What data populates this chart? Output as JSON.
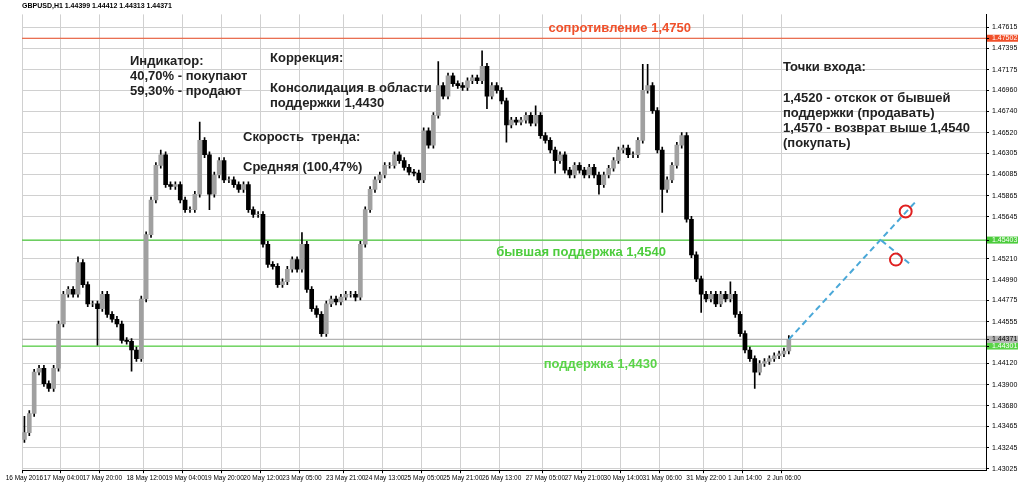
{
  "chart_data": {
    "type": "candlestick",
    "title": "GBPUSD,H1 1.44399 1.44412 1.44313 1.44371",
    "color": "#000000",
    "grid": true,
    "colors": [
      "#a0a0a0",
      "#a0a0a0",
      "#a0a0a0",
      "#a0a0a0",
      "#000000",
      "#000000",
      "#a0a0a0",
      "#a0a0a0",
      "#a0a0a0",
      "#a0a0a0",
      "#000000",
      "#a0a0a0",
      "#000000",
      "#000000",
      "#a0a0a0",
      "#000000",
      "#a0a0a0",
      "#000000",
      "#000000",
      "#000000",
      "#000000",
      "#000000",
      "#000000",
      "#000000",
      "#a0a0a0",
      "#a0a0a0",
      "#a0a0a0",
      "#a0a0a0",
      "#a0a0a0",
      "#000000",
      "#000000",
      "#a0a0a0",
      "#000000",
      "#000000",
      "#a0a0a0",
      "#a0a0a0",
      "#a0a0a0",
      "#000000",
      "#000000",
      "#a0a0a0",
      "#a0a0a0",
      "#000000",
      "#a0a0a0",
      "#000000",
      "#000000",
      "#a0a0a0",
      "#000000",
      "#000000",
      "#a0a0a0",
      "#000000",
      "#000000",
      "#000000",
      "#000000",
      "#a0a0a0",
      "#a0a0a0",
      "#a0a0a0",
      "#000000",
      "#a0a0a0",
      "#000000",
      "#000000",
      "#000000",
      "#000000",
      "#a0a0a0",
      "#a0a0a0",
      "#000000",
      "#a0a0a0",
      "#a0a0a0",
      "#a0a0a0",
      "#000000",
      "#a0a0a0",
      "#a0a0a0",
      "#a0a0a0",
      "#a0a0a0",
      "#a0a0a0",
      "#a0a0a0",
      "#a0a0a0",
      "#a0a0a0",
      "#000000",
      "#000000",
      "#000000",
      "#000000",
      "#000000",
      "#a0a0a0",
      "#000000",
      "#a0a0a0",
      "#a0a0a0",
      "#000000",
      "#a0a0a0",
      "#000000",
      "#000000",
      "#000000",
      "#a0a0a0",
      "#a0a0a0",
      "#000000",
      "#a0a0a0",
      "#000000",
      "#a0a0a0",
      "#000000",
      "#000000",
      "#000000",
      "#a0a0a0",
      "#000000",
      "#a0a0a0",
      "#a0a0a0",
      "#000000",
      "#a0a0a0",
      "#000000",
      "#000000",
      "#000000",
      "#000000",
      "#a0a0a0",
      "#000000",
      "#000000",
      "#a0a0a0",
      "#000000",
      "#000000",
      "#a0a0a0",
      "#000000",
      "#000000",
      "#a0a0a0",
      "#a0a0a0",
      "#a0a0a0",
      "#a0a0a0",
      "#a0a0a0",
      "#000000",
      "#a0a0a0",
      "#a0a0a0",
      "#a0a0a0",
      "#a0a0a0",
      "#000000",
      "#000000",
      "#000000",
      "#a0a0a0",
      "#a0a0a0",
      "#a0a0a0",
      "#a0a0a0",
      "#000000",
      "#000000",
      "#000000",
      "#000000",
      "#000000",
      "#a0a0a0",
      "#000000",
      "#a0a0a0",
      "#000000",
      "#a0a0a0",
      "#000000",
      "#000000",
      "#000000",
      "#000000",
      "#000000",
      "#a0a0a0",
      "#a0a0a0",
      "#a0a0a0",
      "#a0a0a0",
      "#a0a0a0",
      "#a0a0a0",
      "#a0a0a0",
      null,
      null,
      null,
      null,
      null,
      null,
      null,
      null,
      null,
      null,
      null,
      null,
      null,
      null,
      null,
      null,
      null,
      null,
      null,
      null,
      null,
      null,
      null,
      null,
      null,
      null,
      null,
      null,
      null,
      null,
      null,
      null,
      null,
      null,
      null,
      null,
      null,
      null,
      null,
      null
    ],
    "legend": false,
    "categories": [
      "16 May 2016",
      null,
      null,
      null,
      null,
      null,
      null,
      null,
      "17 May 04:00",
      null,
      null,
      null,
      null,
      null,
      null,
      null,
      "17 May 20:00",
      null,
      null,
      null,
      null,
      null,
      null,
      null,
      null,
      "18 May 12:00",
      null,
      null,
      null,
      null,
      null,
      null,
      null,
      "19 May 04:00",
      null,
      null,
      null,
      null,
      null,
      null,
      null,
      "19 May 20:00",
      null,
      null,
      null,
      null,
      null,
      null,
      null,
      "20 May 12:00",
      null,
      null,
      null,
      null,
      null,
      null,
      null,
      "23 May 05:00",
      null,
      null,
      null,
      null,
      null,
      null,
      null,
      null,
      "23 May 21:00",
      null,
      null,
      null,
      null,
      null,
      null,
      null,
      "24 May 13:00",
      null,
      null,
      null,
      null,
      null,
      null,
      null,
      "25 May 05:00",
      null,
      null,
      null,
      null,
      null,
      null,
      null,
      "25 May 21:00",
      null,
      null,
      null,
      null,
      null,
      null,
      null,
      "26 May 13:00",
      null,
      null,
      null,
      null,
      null,
      null,
      null,
      null,
      "27 May 05:00",
      null,
      null,
      null,
      null,
      null,
      null,
      null,
      "27 May 21:00",
      null,
      null,
      null,
      null,
      null,
      null,
      null,
      "30 May 14:00",
      null,
      null,
      null,
      null,
      null,
      null,
      null,
      "31 May 06:00",
      null,
      null,
      null,
      null,
      null,
      null,
      null,
      null,
      "31 May 22:00",
      null,
      null,
      null,
      null,
      null,
      null,
      null,
      "1 Jun 14:00",
      null,
      null,
      null,
      null,
      null,
      null,
      null,
      "2 Jun 06:00",
      null,
      null,
      null,
      null,
      null,
      null,
      null,
      null,
      null,
      null,
      null,
      null,
      null,
      null,
      null,
      null,
      null,
      null,
      null,
      null,
      null,
      null,
      null,
      null,
      null,
      null,
      null,
      null,
      null,
      null,
      null,
      null,
      null,
      null,
      null,
      null,
      null,
      null,
      null,
      null,
      null
    ],
    "ohlc": [
      [
        1.4333,
        1.4357,
        1.433,
        1.434
      ],
      [
        1.434,
        1.4363,
        1.4337,
        1.436
      ],
      [
        1.436,
        1.4406,
        1.4357,
        1.4403
      ],
      [
        1.4403,
        1.441,
        1.44,
        1.4407
      ],
      [
        1.4407,
        1.441,
        1.4388,
        1.4391
      ],
      [
        1.4391,
        1.4394,
        1.4383,
        1.4386
      ],
      [
        1.4386,
        1.441,
        1.4383,
        1.4407
      ],
      [
        1.4407,
        1.4456,
        1.4404,
        1.4453
      ],
      [
        1.4453,
        1.4487,
        1.445,
        1.4484
      ],
      [
        1.4484,
        1.4492,
        1.4481,
        1.4489
      ],
      [
        1.4489,
        1.4492,
        1.4481,
        1.4484
      ],
      [
        1.4484,
        1.4523,
        1.4481,
        1.4517
      ],
      [
        1.4517,
        1.452,
        1.4491,
        1.4494
      ],
      [
        1.4494,
        1.4497,
        1.4471,
        1.4474
      ],
      [
        1.4474,
        1.4477,
        1.4471,
        1.4474
      ],
      [
        1.4474,
        1.4477,
        1.4431,
        1.4469
      ],
      [
        1.4469,
        1.4487,
        1.4466,
        1.4484
      ],
      [
        1.4484,
        1.4487,
        1.446,
        1.4463
      ],
      [
        1.4463,
        1.4466,
        1.4455,
        1.4458
      ],
      [
        1.4458,
        1.4461,
        1.445,
        1.4453
      ],
      [
        1.4453,
        1.4456,
        1.4433,
        1.4436
      ],
      [
        1.4436,
        1.4439,
        1.4432,
        1.4435
      ],
      [
        1.4435,
        1.4438,
        1.4404,
        1.4426
      ],
      [
        1.4426,
        1.4429,
        1.4414,
        1.4417
      ],
      [
        1.4417,
        1.4482,
        1.4414,
        1.4479
      ],
      [
        1.4479,
        1.4549,
        1.4476,
        1.4546
      ],
      [
        1.4546,
        1.4585,
        1.4543,
        1.4582
      ],
      [
        1.4582,
        1.4621,
        1.4579,
        1.4618
      ],
      [
        1.4618,
        1.4634,
        1.4615,
        1.4629
      ],
      [
        1.4629,
        1.4632,
        1.4595,
        1.4598
      ],
      [
        1.4598,
        1.4601,
        1.4593,
        1.4596
      ],
      [
        1.4596,
        1.4601,
        1.4593,
        1.4598
      ],
      [
        1.4598,
        1.4601,
        1.4579,
        1.4582
      ],
      [
        1.4582,
        1.4585,
        1.4569,
        1.4572
      ],
      [
        1.4572,
        1.4575,
        1.4569,
        1.4572
      ],
      [
        1.4572,
        1.4591,
        1.4569,
        1.4588
      ],
      [
        1.4588,
        1.4663,
        1.4585,
        1.4644
      ],
      [
        1.4644,
        1.4647,
        1.4626,
        1.4629
      ],
      [
        1.4629,
        1.4632,
        1.4572,
        1.4588
      ],
      [
        1.4588,
        1.4611,
        1.4585,
        1.4608
      ],
      [
        1.4608,
        1.4626,
        1.4605,
        1.4623
      ],
      [
        1.4623,
        1.4626,
        1.46,
        1.4603
      ],
      [
        1.4603,
        1.4606,
        1.46,
        1.4603
      ],
      [
        1.4603,
        1.4606,
        1.4595,
        1.4598
      ],
      [
        1.4598,
        1.4601,
        1.459,
        1.4593
      ],
      [
        1.4593,
        1.4601,
        1.459,
        1.4598
      ],
      [
        1.4598,
        1.4601,
        1.4569,
        1.4572
      ],
      [
        1.4572,
        1.4575,
        1.4564,
        1.4567
      ],
      [
        1.4567,
        1.457,
        1.4564,
        1.4567
      ],
      [
        1.4567,
        1.457,
        1.4533,
        1.4536
      ],
      [
        1.4536,
        1.4539,
        1.4512,
        1.4515
      ],
      [
        1.4515,
        1.4518,
        1.451,
        1.4513
      ],
      [
        1.4513,
        1.4516,
        1.4491,
        1.4494
      ],
      [
        1.4494,
        1.45,
        1.4491,
        1.4497
      ],
      [
        1.4497,
        1.4513,
        1.4494,
        1.451
      ],
      [
        1.451,
        1.4523,
        1.4507,
        1.452
      ],
      [
        1.452,
        1.4523,
        1.4507,
        1.451
      ],
      [
        1.451,
        1.4548,
        1.4507,
        1.4536
      ],
      [
        1.4536,
        1.4539,
        1.4486,
        1.4489
      ],
      [
        1.4489,
        1.4492,
        1.4466,
        1.4469
      ],
      [
        1.4469,
        1.4472,
        1.446,
        1.4463
      ],
      [
        1.4463,
        1.4466,
        1.444,
        1.4443
      ],
      [
        1.4443,
        1.4477,
        1.444,
        1.4474
      ],
      [
        1.4474,
        1.4482,
        1.4471,
        1.4479
      ],
      [
        1.4479,
        1.4482,
        1.4473,
        1.4476
      ],
      [
        1.4476,
        1.4484,
        1.4473,
        1.4481
      ],
      [
        1.4481,
        1.4487,
        1.4478,
        1.4484
      ],
      [
        1.4484,
        1.4487,
        1.4481,
        1.4484
      ],
      [
        1.4484,
        1.4487,
        1.4477,
        1.4481
      ],
      [
        1.4481,
        1.4539,
        1.4478,
        1.4536
      ],
      [
        1.4536,
        1.4575,
        1.4533,
        1.4572
      ],
      [
        1.4572,
        1.4596,
        1.4569,
        1.4593
      ],
      [
        1.4593,
        1.4606,
        1.459,
        1.4603
      ],
      [
        1.4603,
        1.4611,
        1.46,
        1.4608
      ],
      [
        1.4608,
        1.4621,
        1.4605,
        1.4618
      ],
      [
        1.4618,
        1.4621,
        1.4615,
        1.4618
      ],
      [
        1.4618,
        1.4632,
        1.4615,
        1.4629
      ],
      [
        1.4629,
        1.4632,
        1.462,
        1.4623
      ],
      [
        1.4623,
        1.4626,
        1.4613,
        1.4616
      ],
      [
        1.4616,
        1.4619,
        1.4608,
        1.4611
      ],
      [
        1.4611,
        1.4614,
        1.4607,
        1.461
      ],
      [
        1.461,
        1.4613,
        1.46,
        1.4603
      ],
      [
        1.4603,
        1.4657,
        1.46,
        1.4654
      ],
      [
        1.4654,
        1.4657,
        1.4636,
        1.4639
      ],
      [
        1.4639,
        1.4673,
        1.4636,
        1.467
      ],
      [
        1.467,
        1.4726,
        1.4667,
        1.4701
      ],
      [
        1.4701,
        1.4704,
        1.4687,
        1.469
      ],
      [
        1.469,
        1.4714,
        1.4687,
        1.4711
      ],
      [
        1.4711,
        1.4714,
        1.47,
        1.4703
      ],
      [
        1.4703,
        1.4706,
        1.4698,
        1.4701
      ],
      [
        1.4701,
        1.4704,
        1.4696,
        1.4699
      ],
      [
        1.4699,
        1.4709,
        1.4696,
        1.4706
      ],
      [
        1.4706,
        1.4712,
        1.4703,
        1.4709
      ],
      [
        1.4709,
        1.4712,
        1.4703,
        1.4706
      ],
      [
        1.4706,
        1.4737,
        1.4703,
        1.4721
      ],
      [
        1.4721,
        1.4724,
        1.4677,
        1.469
      ],
      [
        1.469,
        1.4704,
        1.4687,
        1.4701
      ],
      [
        1.4701,
        1.4704,
        1.4693,
        1.4696
      ],
      [
        1.4696,
        1.4699,
        1.4682,
        1.4685
      ],
      [
        1.4685,
        1.4688,
        1.4642,
        1.466
      ],
      [
        1.466,
        1.4668,
        1.4657,
        1.4665
      ],
      [
        1.4665,
        1.4668,
        1.466,
        1.4663
      ],
      [
        1.4663,
        1.4668,
        1.466,
        1.4665
      ],
      [
        1.4665,
        1.4673,
        1.4662,
        1.467
      ],
      [
        1.467,
        1.4673,
        1.4659,
        1.4662
      ],
      [
        1.4662,
        1.468,
        1.4659,
        1.467
      ],
      [
        1.467,
        1.4673,
        1.4646,
        1.4649
      ],
      [
        1.4649,
        1.4652,
        1.4641,
        1.4644
      ],
      [
        1.4644,
        1.4647,
        1.4631,
        1.4634
      ],
      [
        1.4634,
        1.4637,
        1.461,
        1.4623
      ],
      [
        1.4623,
        1.4632,
        1.462,
        1.4629
      ],
      [
        1.4629,
        1.4632,
        1.461,
        1.4613
      ],
      [
        1.4613,
        1.4616,
        1.4605,
        1.4608
      ],
      [
        1.4608,
        1.4621,
        1.4605,
        1.4618
      ],
      [
        1.4618,
        1.4621,
        1.461,
        1.4613
      ],
      [
        1.4613,
        1.4616,
        1.4605,
        1.4608
      ],
      [
        1.4608,
        1.4619,
        1.4605,
        1.4616
      ],
      [
        1.4616,
        1.4619,
        1.4605,
        1.4608
      ],
      [
        1.4608,
        1.4611,
        1.4588,
        1.4598
      ],
      [
        1.4598,
        1.4611,
        1.4595,
        1.4608
      ],
      [
        1.4608,
        1.4618,
        1.4605,
        1.4615
      ],
      [
        1.4615,
        1.4626,
        1.4612,
        1.4623
      ],
      [
        1.4623,
        1.4637,
        1.462,
        1.4634
      ],
      [
        1.4634,
        1.4639,
        1.4631,
        1.4636
      ],
      [
        1.4636,
        1.4639,
        1.4626,
        1.4629
      ],
      [
        1.4629,
        1.4632,
        1.4626,
        1.4629
      ],
      [
        1.4629,
        1.4647,
        1.4626,
        1.4644
      ],
      [
        1.4644,
        1.4723,
        1.4641,
        1.4696
      ],
      [
        1.4696,
        1.4723,
        1.4693,
        1.4701
      ],
      [
        1.4701,
        1.4704,
        1.4672,
        1.4675
      ],
      [
        1.4675,
        1.4678,
        1.4631,
        1.4634
      ],
      [
        1.4634,
        1.4637,
        1.4569,
        1.4593
      ],
      [
        1.4593,
        1.4606,
        1.459,
        1.4603
      ],
      [
        1.4603,
        1.4621,
        1.46,
        1.4618
      ],
      [
        1.4618,
        1.4642,
        1.4615,
        1.4639
      ],
      [
        1.4639,
        1.4652,
        1.4636,
        1.4649
      ],
      [
        1.4649,
        1.4652,
        1.4559,
        1.4562
      ],
      [
        1.4562,
        1.4565,
        1.4522,
        1.4525
      ],
      [
        1.4525,
        1.4528,
        1.4497,
        1.45
      ],
      [
        1.45,
        1.4503,
        1.4465,
        1.4484
      ],
      [
        1.4484,
        1.4487,
        1.4476,
        1.4479
      ],
      [
        1.4479,
        1.4487,
        1.4476,
        1.4484
      ],
      [
        1.4484,
        1.4487,
        1.4471,
        1.4474
      ],
      [
        1.4474,
        1.4487,
        1.4471,
        1.4484
      ],
      [
        1.4484,
        1.4487,
        1.4476,
        1.4479
      ],
      [
        1.4479,
        1.4497,
        1.4476,
        1.4484
      ],
      [
        1.4484,
        1.4487,
        1.446,
        1.4463
      ],
      [
        1.4463,
        1.4466,
        1.444,
        1.4443
      ],
      [
        1.4443,
        1.4446,
        1.4423,
        1.4426
      ],
      [
        1.4426,
        1.4429,
        1.4414,
        1.4417
      ],
      [
        1.4417,
        1.442,
        1.4386,
        1.4403
      ],
      [
        1.4403,
        1.4415,
        1.44,
        1.4412
      ],
      [
        1.4412,
        1.4417,
        1.4409,
        1.4414
      ],
      [
        1.4414,
        1.442,
        1.4411,
        1.4417
      ],
      [
        1.4417,
        1.4423,
        1.4414,
        1.442
      ],
      [
        1.442,
        1.4425,
        1.4417,
        1.4422
      ],
      [
        1.4422,
        1.4428,
        1.4419,
        1.4425
      ],
      [
        1.4425,
        1.4441,
        1.4422,
        1.4437
      ],
      null,
      null,
      null,
      null,
      null,
      null,
      null,
      null,
      null,
      null,
      null,
      null,
      null,
      null,
      null,
      null,
      null,
      null,
      null,
      null,
      null,
      null,
      null,
      null,
      null,
      null,
      null,
      null,
      null,
      null,
      null,
      null,
      null,
      null,
      null,
      null,
      null,
      null,
      null,
      null
    ],
    "series": [
      {
        "type": "line",
        "color": "#4aa8d8",
        "line_style": "dashed",
        "marker": "none",
        "values": [
          null,
          null,
          null,
          null,
          null,
          null,
          null,
          null,
          null,
          null,
          null,
          null,
          null,
          null,
          null,
          null,
          null,
          null,
          null,
          null,
          null,
          null,
          null,
          null,
          null,
          null,
          null,
          null,
          null,
          null,
          null,
          null,
          null,
          null,
          null,
          null,
          null,
          null,
          null,
          null,
          null,
          null,
          null,
          null,
          null,
          null,
          null,
          null,
          null,
          null,
          null,
          null,
          null,
          null,
          null,
          null,
          null,
          null,
          null,
          null,
          null,
          null,
          null,
          null,
          null,
          null,
          null,
          null,
          null,
          null,
          null,
          null,
          null,
          null,
          null,
          null,
          null,
          null,
          null,
          null,
          null,
          null,
          null,
          null,
          null,
          null,
          null,
          null,
          null,
          null,
          null,
          null,
          null,
          null,
          null,
          null,
          null,
          null,
          null,
          null,
          null,
          null,
          null,
          null,
          null,
          null,
          null,
          null,
          null,
          null,
          null,
          null,
          null,
          null,
          null,
          null,
          null,
          null,
          null,
          null,
          null,
          null,
          null,
          null,
          null,
          null,
          null,
          null,
          null,
          null,
          null,
          null,
          null,
          null,
          null,
          null,
          null,
          null,
          null,
          null,
          null,
          null,
          null,
          null,
          null,
          null,
          null,
          null,
          null,
          null,
          null,
          null,
          null,
          null,
          null,
          null,
          null,
          1.4437,
          null,
          null,
          null,
          null,
          null,
          null,
          null,
          null,
          null,
          null,
          null,
          null,
          null,
          null,
          null,
          null,
          null,
          null,
          null,
          null,
          null,
          null,
          null,
          null,
          null,
          1.458,
          null,
          null,
          null,
          null,
          null,
          null,
          null,
          null,
          null,
          null,
          null,
          null,
          null,
          null
        ]
      },
      {
        "type": "line",
        "color": "#4aa8d8",
        "line_style": "dashed",
        "marker": "none",
        "values": [
          null,
          null,
          null,
          null,
          null,
          null,
          null,
          null,
          null,
          null,
          null,
          null,
          null,
          null,
          null,
          null,
          null,
          null,
          null,
          null,
          null,
          null,
          null,
          null,
          null,
          null,
          null,
          null,
          null,
          null,
          null,
          null,
          null,
          null,
          null,
          null,
          null,
          null,
          null,
          null,
          null,
          null,
          null,
          null,
          null,
          null,
          null,
          null,
          null,
          null,
          null,
          null,
          null,
          null,
          null,
          null,
          null,
          null,
          null,
          null,
          null,
          null,
          null,
          null,
          null,
          null,
          null,
          null,
          null,
          null,
          null,
          null,
          null,
          null,
          null,
          null,
          null,
          null,
          null,
          null,
          null,
          null,
          null,
          null,
          null,
          null,
          null,
          null,
          null,
          null,
          null,
          null,
          null,
          null,
          null,
          null,
          null,
          null,
          null,
          null,
          null,
          null,
          null,
          null,
          null,
          null,
          null,
          null,
          null,
          null,
          null,
          null,
          null,
          null,
          null,
          null,
          null,
          null,
          null,
          null,
          null,
          null,
          null,
          null,
          null,
          null,
          null,
          null,
          null,
          null,
          null,
          null,
          null,
          null,
          null,
          null,
          null,
          null,
          null,
          null,
          null,
          null,
          null,
          null,
          null,
          null,
          null,
          null,
          null,
          null,
          null,
          null,
          null,
          null,
          null,
          null,
          null,
          null,
          null,
          null,
          null,
          null,
          null,
          null,
          null,
          null,
          null,
          null,
          null,
          null,
          null,
          null,
          null,
          null,
          null,
          null,
          1.454,
          null,
          null,
          null,
          null,
          null,
          1.4515,
          null,
          null,
          null,
          null,
          null,
          null,
          null,
          null,
          null,
          null,
          null,
          null,
          null,
          null,
          null
        ]
      },
      {
        "type": "scatter",
        "color": "#e02020",
        "marker": "circle",
        "values": [
          null,
          null,
          null,
          null,
          null,
          null,
          null,
          null,
          null,
          null,
          null,
          null,
          null,
          null,
          null,
          null,
          null,
          null,
          null,
          null,
          null,
          null,
          null,
          null,
          null,
          null,
          null,
          null,
          null,
          null,
          null,
          null,
          null,
          null,
          null,
          null,
          null,
          null,
          null,
          null,
          null,
          null,
          null,
          null,
          null,
          null,
          null,
          null,
          null,
          null,
          null,
          null,
          null,
          null,
          null,
          null,
          null,
          null,
          null,
          null,
          null,
          null,
          null,
          null,
          null,
          null,
          null,
          null,
          null,
          null,
          null,
          null,
          null,
          null,
          null,
          null,
          null,
          null,
          null,
          null,
          null,
          null,
          null,
          null,
          null,
          null,
          null,
          null,
          null,
          null,
          null,
          null,
          null,
          null,
          null,
          null,
          null,
          null,
          null,
          null,
          null,
          null,
          null,
          null,
          null,
          null,
          null,
          null,
          null,
          null,
          null,
          null,
          null,
          null,
          null,
          null,
          null,
          null,
          null,
          null,
          null,
          null,
          null,
          null,
          null,
          null,
          null,
          null,
          null,
          null,
          null,
          null,
          null,
          null,
          null,
          null,
          null,
          null,
          null,
          null,
          null,
          null,
          null,
          null,
          null,
          null,
          null,
          null,
          null,
          null,
          null,
          null,
          null,
          null,
          null,
          null,
          null,
          null,
          null,
          null,
          null,
          null,
          null,
          null,
          null,
          null,
          null,
          null,
          null,
          null,
          null,
          null,
          null,
          null,
          null,
          null,
          null,
          null,
          null,
          1.452,
          null,
          1.457,
          null,
          null,
          null,
          null,
          null,
          null,
          null,
          null,
          null,
          null,
          null,
          null,
          null,
          null,
          null,
          null
        ]
      }
    ],
    "ylim": [
      1.4301,
      1.4775
    ],
    "yticks": [
      {
        "value": 1.47615,
        "label": "1.47615"
      },
      {
        "value": 1.47395,
        "label": "1.47395"
      },
      {
        "value": 1.47175,
        "label": "1.47175"
      },
      {
        "value": 1.4696,
        "label": "1.46960"
      },
      {
        "value": 1.4674,
        "label": "1.46740"
      },
      {
        "value": 1.4652,
        "label": "1.46520"
      },
      {
        "value": 1.46305,
        "label": "1.46305"
      },
      {
        "value": 1.46085,
        "label": "1.46085"
      },
      {
        "value": 1.45865,
        "label": "1.45865"
      },
      {
        "value": 1.45645,
        "label": "1.45645"
      },
      {
        "value": 1.4521,
        "label": "1.45210"
      },
      {
        "value": 1.4499,
        "label": "1.44990"
      },
      {
        "value": 1.44775,
        "label": "1.44775"
      },
      {
        "value": 1.44555,
        "label": "1.44555"
      },
      {
        "value": 1.4412,
        "label": "1.44120"
      },
      {
        "value": 1.439,
        "label": "1.43900"
      },
      {
        "value": 1.4368,
        "label": "1.43680"
      },
      {
        "value": 1.43465,
        "label": "1.43465"
      },
      {
        "value": 1.43245,
        "label": "1.43245"
      },
      {
        "value": 1.43025,
        "label": "1.43025"
      },
      {
        "value": 1.47502,
        "label": "1.47502"
      },
      {
        "value": 1.45403,
        "label": "1.45403"
      },
      {
        "value": 1.44371,
        "label": "1.44371"
      },
      {
        "value": 1.44301,
        "label": "1.44301"
      }
    ],
    "ref_lines": [
      {
        "axis": "y",
        "value": 1.47502,
        "label": "сопротивление 1,4750",
        "color": "#f0502a"
      },
      {
        "axis": "y",
        "value": 1.45403,
        "label": "бывшая поддержка 1,4540",
        "color": "#4ccc3c"
      },
      {
        "axis": "y",
        "value": 1.44301,
        "label": "поддержка 1,4430",
        "color": "#5ad448"
      },
      {
        "axis": "y",
        "value": 1.44371,
        "color": "#b4b4b4"
      }
    ],
    "annotations": [
      "Индикатор:",
      "40,70% - покупают",
      "59,30% - продают",
      "Коррекция:",
      "Консолидация в области поддержки 1,4430",
      "Скорость  тренда:",
      "Средняя (100,47%)",
      "Точки входа:",
      "1,4520 - отскок от бывшей поддержки (продавать)",
      "1,4570 - возврат выше 1,4540 (покупать)"
    ]
  }
}
